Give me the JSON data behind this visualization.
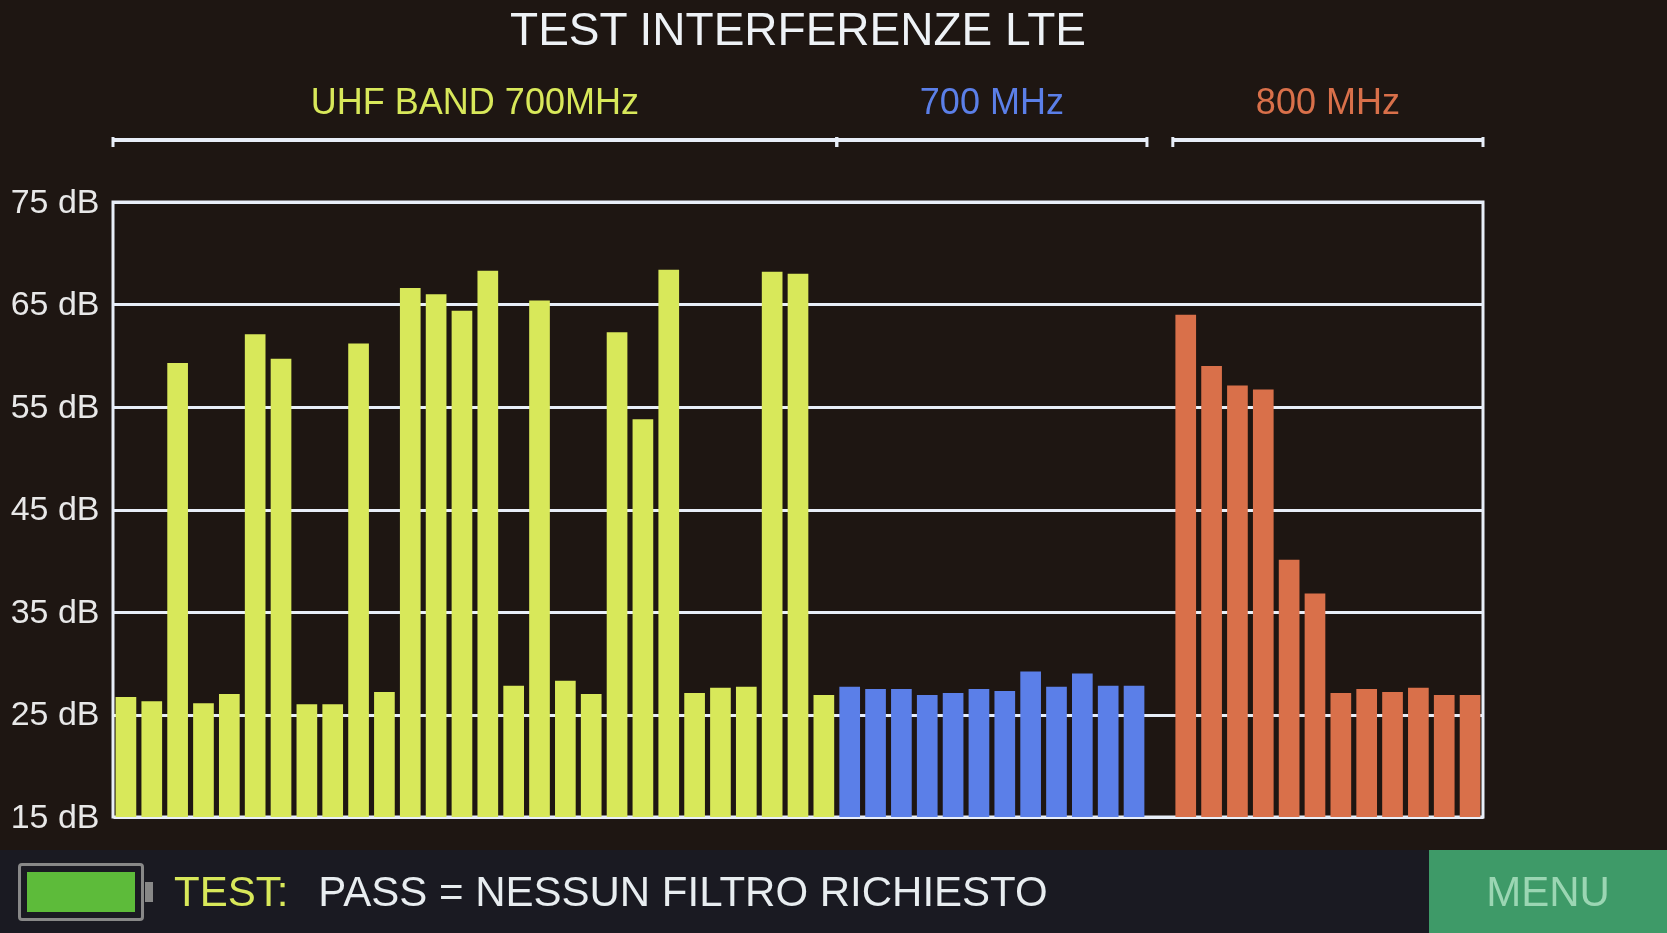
{
  "chart_data": {
    "type": "bar",
    "title": "TEST INTERFERENZE LTE",
    "categories": [
      null,
      null,
      null,
      null,
      null,
      null,
      null,
      null,
      null,
      null,
      null,
      null,
      null,
      null,
      null,
      null,
      null,
      null,
      null,
      null,
      null,
      null,
      null,
      null,
      null,
      null,
      null,
      null,
      null,
      null,
      null,
      null,
      null,
      null,
      null,
      null,
      null,
      null,
      null,
      null,
      null,
      null,
      null,
      null,
      null,
      null,
      null,
      null,
      null,
      null,
      null,
      null,
      null
    ],
    "series": [
      {
        "name": "UHF BAND 700MHz",
        "color": "#d8e85a",
        "values": [
          26.7,
          26.3,
          59.3,
          26.1,
          27.0,
          62.1,
          59.7,
          26.0,
          26.0,
          61.2,
          27.2,
          66.6,
          66.0,
          64.4,
          68.3,
          27.8,
          65.4,
          28.3,
          27.0,
          62.3,
          53.8,
          68.4,
          27.1,
          27.6,
          27.7,
          68.2,
          68.0,
          26.9,
          null,
          null,
          null,
          null,
          null,
          null,
          null,
          null,
          null,
          null,
          null,
          null,
          null,
          null,
          null,
          null,
          null,
          null,
          null,
          null,
          null,
          null,
          null,
          null,
          null
        ]
      },
      {
        "name": "700 MHz",
        "color": "#5b7fe8",
        "values": [
          null,
          null,
          null,
          null,
          null,
          null,
          null,
          null,
          null,
          null,
          null,
          null,
          null,
          null,
          null,
          null,
          null,
          null,
          null,
          null,
          null,
          null,
          null,
          null,
          null,
          null,
          null,
          null,
          27.7,
          27.5,
          27.5,
          26.9,
          27.1,
          27.5,
          27.3,
          29.2,
          27.7,
          29.0,
          27.8,
          27.8,
          null,
          null,
          null,
          null,
          null,
          null,
          null,
          null,
          null,
          null,
          null,
          null,
          null
        ]
      },
      {
        "name": "800 MHz",
        "color": "#d9704a",
        "values": [
          null,
          null,
          null,
          null,
          null,
          null,
          null,
          null,
          null,
          null,
          null,
          null,
          null,
          null,
          null,
          null,
          null,
          null,
          null,
          null,
          null,
          null,
          null,
          null,
          null,
          null,
          null,
          null,
          null,
          null,
          null,
          null,
          null,
          null,
          null,
          null,
          null,
          null,
          null,
          null,
          null,
          64.0,
          59.0,
          57.1,
          56.7,
          40.1,
          36.8,
          27.1,
          27.5,
          27.2,
          27.6,
          26.9,
          26.9
        ]
      }
    ],
    "ylim": [
      15,
      75
    ],
    "yticks": [
      {
        "value": 15,
        "label": "15 dB"
      },
      {
        "value": 25,
        "label": "25 dB"
      },
      {
        "value": 35,
        "label": "35 dB"
      },
      {
        "value": 45,
        "label": "45 dB"
      },
      {
        "value": 55,
        "label": "55 dB"
      },
      {
        "value": 65,
        "label": "65 dB"
      },
      {
        "value": 75,
        "label": "75 dB"
      }
    ],
    "grid": "y",
    "annotations": [
      "TEST:",
      "PASS = NESSUN FILTRO RICHIESTO",
      "MENU"
    ]
  }
}
